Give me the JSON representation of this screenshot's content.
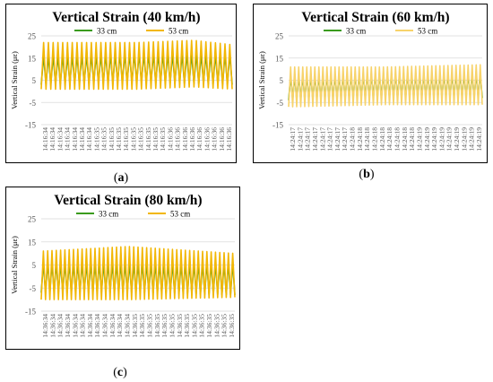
{
  "figure": {
    "panels": [
      {
        "id": "a",
        "caption_open": "(",
        "caption_letter": "a",
        "caption_close": ")",
        "chart_data_index": 0
      },
      {
        "id": "b",
        "caption_open": "(",
        "caption_letter": "b",
        "caption_close": ")",
        "chart_data_index": 1
      },
      {
        "id": "c",
        "caption_open": "(",
        "caption_letter": "c",
        "caption_close": ")",
        "chart_data_index": 2
      }
    ]
  },
  "chart_data": [
    {
      "type": "line",
      "title": "Vertical Strain (40 km/h)",
      "ylabel": "Vertical Strain (με)",
      "xlabel": "",
      "ylim": [
        -15,
        25
      ],
      "yticks": [
        25,
        15,
        5,
        -5,
        -15
      ],
      "grid": true,
      "legend_position": "top",
      "x_tick_labels": [
        "14:16:34",
        "14:16:34",
        "14:16:34",
        "14:16:34",
        "14:16:34",
        "14:16:34",
        "14:16:34",
        "14:16:35",
        "14:16:35",
        "14:16:35",
        "14:16:35",
        "14:16:35",
        "14:16:35",
        "14:16:35",
        "14:16:35",
        "14:16:35",
        "14:16:35",
        "14:16:36",
        "14:16:36",
        "14:16:36",
        "14:16:36",
        "14:16:36",
        "14:16:36",
        "14:16:36",
        "14:16:36",
        "14:16:36"
      ],
      "series": [
        {
          "name": "33 cm",
          "color": "#3a9b1c",
          "cycles": 40,
          "envelope": [
            [
              0,
              3,
              16
            ],
            [
              0.5,
              4,
              17
            ],
            [
              1,
              3,
              17
            ]
          ]
        },
        {
          "name": "53 cm",
          "color": "#f2b705",
          "cycles": 40,
          "envelope": [
            [
              0,
              1,
              22
            ],
            [
              0.5,
              1,
              22
            ],
            [
              0.8,
              2,
              23
            ],
            [
              1,
              1,
              21
            ]
          ]
        }
      ]
    },
    {
      "type": "line",
      "title": "Vertical Strain (60 km/h)",
      "ylabel": "Vertical Strain (με)",
      "xlabel": "",
      "ylim": [
        -15,
        25
      ],
      "yticks": [
        25,
        15,
        5,
        -5,
        -15
      ],
      "grid": true,
      "legend_position": "top",
      "x_tick_labels": [
        "14:24:17",
        "14:24:17",
        "14:24:17",
        "14:24:17",
        "14:24:17",
        "14:24:17",
        "14:24:17",
        "14:24:17",
        "14:24:18",
        "14:24:18",
        "14:24:18",
        "14:24:18",
        "14:24:18",
        "14:24:18",
        "14:24:18",
        "14:24:18",
        "14:24:18",
        "14:24:19",
        "14:24:19",
        "14:24:19",
        "14:24:19",
        "14:24:19",
        "14:24:19",
        "14:24:19",
        "14:24:19",
        "14:24:19"
      ],
      "series": [
        {
          "name": "33 cm",
          "color": "#3a9b1c",
          "cycles": 48,
          "envelope": [
            [
              0,
              -4,
              7
            ],
            [
              0.5,
              -3,
              8
            ],
            [
              1,
              -3,
              8
            ]
          ]
        },
        {
          "name": "53 cm",
          "color": "#f7d36b",
          "cycles": 48,
          "envelope": [
            [
              0,
              -7,
              11
            ],
            [
              0.5,
              -6,
              11
            ],
            [
              1,
              -6,
              12
            ]
          ]
        }
      ]
    },
    {
      "type": "line",
      "title": "Vertical Strain (80 km/h)",
      "ylabel": "Vertical Strain (με)",
      "xlabel": "",
      "ylim": [
        -15,
        25
      ],
      "yticks": [
        25,
        15,
        5,
        -5,
        -15
      ],
      "grid": true,
      "legend_position": "top",
      "x_tick_labels": [
        "14:36:34",
        "14:36:34",
        "14:36:34",
        "14:36:34",
        "14:36:34",
        "14:36:34",
        "14:36:34",
        "14:36:34",
        "14:36:34",
        "14:36:34",
        "14:36:34",
        "14:36:34",
        "14:36:35",
        "14:36:35",
        "14:36:35",
        "14:36:35",
        "14:36:35",
        "14:36:35",
        "14:36:35",
        "14:36:35",
        "14:36:35",
        "14:36:35",
        "14:36:35",
        "14:36:35",
        "14:36:35",
        "14:36:35"
      ],
      "series": [
        {
          "name": "33 cm",
          "color": "#3a9b1c",
          "cycles": 45,
          "envelope": [
            [
              0,
              -7,
              6
            ],
            [
              0.5,
              -7,
              6
            ],
            [
              1,
              -8,
              6
            ]
          ]
        },
        {
          "name": "53 cm",
          "color": "#f2b705",
          "cycles": 45,
          "envelope": [
            [
              0,
              -10,
              11
            ],
            [
              0.45,
              -10,
              13
            ],
            [
              1,
              -9,
              10
            ]
          ]
        }
      ]
    }
  ]
}
